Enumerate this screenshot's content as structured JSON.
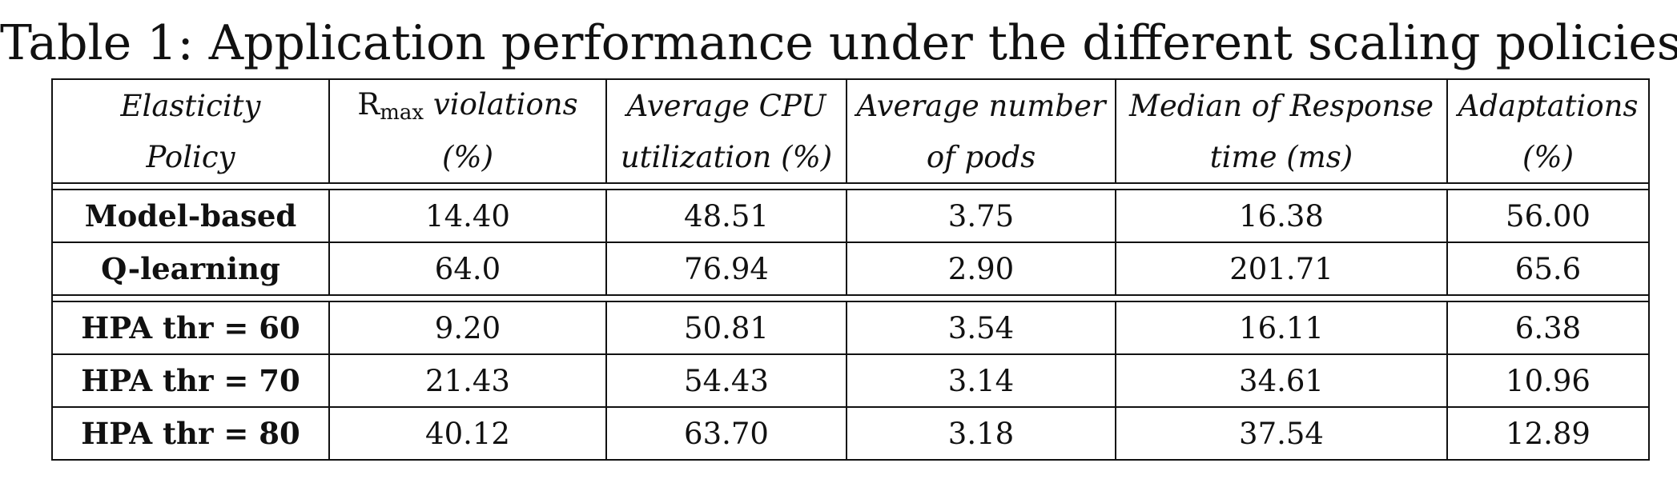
{
  "caption": "Table 1: Application performance under the different scaling policies.",
  "header": {
    "col1": [
      "Elasticity",
      "Policy"
    ],
    "col2": [
      "R",
      "max",
      " violations",
      "(%)"
    ],
    "col3": [
      "Average CPU",
      "utilization (%)"
    ],
    "col4": [
      "Average number",
      "of pods"
    ],
    "col5": [
      "Median of Response",
      "time (ms)"
    ],
    "col6": [
      "Adaptations",
      "(%)"
    ]
  },
  "groups": [
    {
      "rows": [
        {
          "policy": "Model-based",
          "violations": "14.40",
          "cpu": "48.51",
          "pods": "3.75",
          "response": "16.38",
          "adaptations": "56.00"
        },
        {
          "policy": "Q-learning",
          "violations": "64.0",
          "cpu": "76.94",
          "pods": "2.90",
          "response": "201.71",
          "adaptations": "65.6"
        }
      ]
    },
    {
      "rows": [
        {
          "policy": "HPA thr = 60",
          "violations": "9.20",
          "cpu": "50.81",
          "pods": "3.54",
          "response": "16.11",
          "adaptations": "6.38"
        },
        {
          "policy": "HPA thr = 70",
          "violations": "21.43",
          "cpu": "54.43",
          "pods": "3.14",
          "response": "34.61",
          "adaptations": "10.96"
        },
        {
          "policy": "HPA thr = 80",
          "violations": "40.12",
          "cpu": "63.70",
          "pods": "3.18",
          "response": "37.54",
          "adaptations": "12.89"
        }
      ]
    }
  ]
}
